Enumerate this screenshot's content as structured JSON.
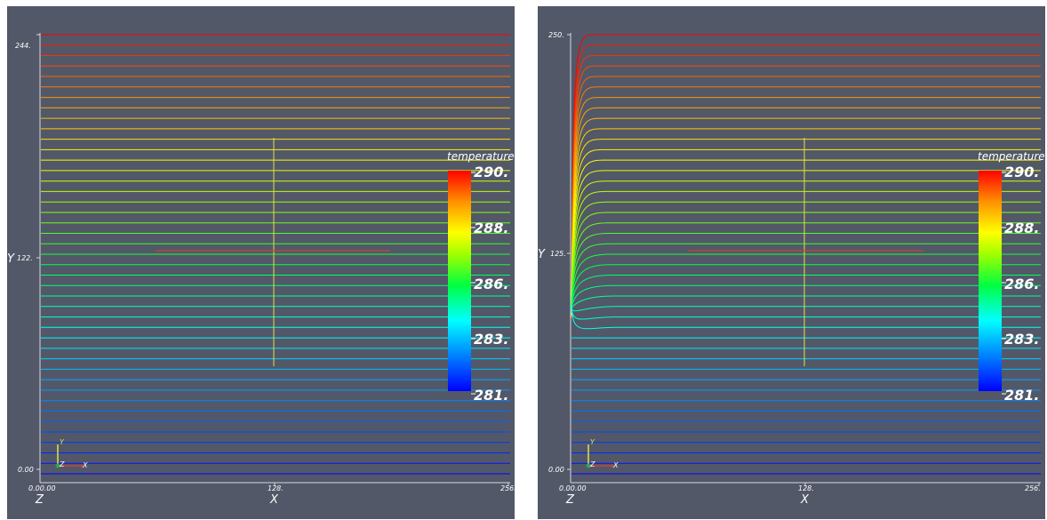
{
  "colors": {
    "background": "#525868",
    "axis": "#d8d8e0",
    "text": "#ffffff",
    "probe_vertical": "#e3e04a",
    "probe_horizontal": "#c8423a"
  },
  "views": [
    {
      "id": "left",
      "description_free": true,
      "y_ticks": {
        "top": "244.",
        "mid": "122.",
        "bottom": "0.00"
      },
      "x_ticks": {
        "left": "0.00.00",
        "mid": "128.",
        "right": "256."
      },
      "axis_labels": {
        "y": "Y",
        "x": "X",
        "z": "Z"
      },
      "orientation_axes": {
        "y": "Y",
        "z": "Z",
        "x": "X"
      },
      "colorbar": {
        "title": "temperature",
        "labels": [
          "290.",
          "288.",
          "286.",
          "283.",
          "281."
        ],
        "colormap": "rainbow-blue-to-red"
      },
      "streamlines": {
        "count": 43,
        "curved": false
      }
    },
    {
      "id": "right",
      "y_ticks": {
        "top": "250.",
        "mid": "125.",
        "bottom": "0.00"
      },
      "x_ticks": {
        "left": "0.00.00",
        "mid": "128.",
        "right": "256."
      },
      "axis_labels": {
        "y": "Y",
        "x": "X",
        "z": "Z"
      },
      "orientation_axes": {
        "y": "Y",
        "z": "Z",
        "x": "X"
      },
      "colorbar": {
        "title": "temperature",
        "labels": [
          "290.",
          "288.",
          "286.",
          "283.",
          "281."
        ],
        "colormap": "rainbow-blue-to-red"
      },
      "streamlines": {
        "count": 43,
        "curved": true
      }
    }
  ]
}
